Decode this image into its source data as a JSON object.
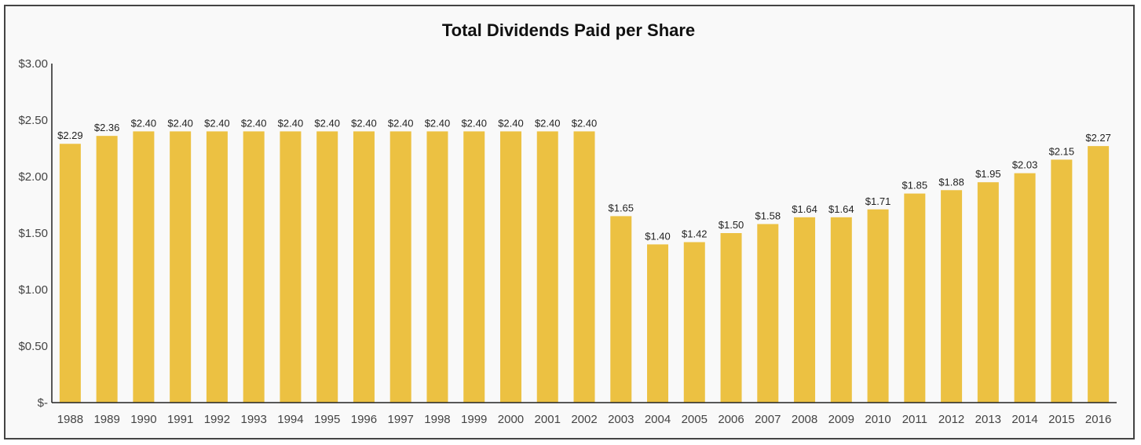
{
  "chart_data": {
    "type": "bar",
    "title": "Total Dividends Paid per Share",
    "xlabel": "",
    "ylabel": "",
    "ylim": [
      0,
      3.0
    ],
    "yticks": [
      "$-",
      "$0.50",
      "$1.00",
      "$1.50",
      "$2.00",
      "$2.50",
      "$3.00"
    ],
    "ytick_values": [
      0,
      0.5,
      1.0,
      1.5,
      2.0,
      2.5,
      3.0
    ],
    "grid": false,
    "bar_color": "#ECC142",
    "categories": [
      "1988",
      "1989",
      "1990",
      "1991",
      "1992",
      "1993",
      "1994",
      "1995",
      "1996",
      "1997",
      "1998",
      "1999",
      "2000",
      "2001",
      "2002",
      "2003",
      "2004",
      "2005",
      "2006",
      "2007",
      "2008",
      "2009",
      "2010",
      "2011",
      "2012",
      "2013",
      "2014",
      "2015",
      "2016"
    ],
    "values": [
      2.29,
      2.36,
      2.4,
      2.4,
      2.4,
      2.4,
      2.4,
      2.4,
      2.4,
      2.4,
      2.4,
      2.4,
      2.4,
      2.4,
      2.4,
      1.65,
      1.4,
      1.42,
      1.5,
      1.58,
      1.64,
      1.64,
      1.71,
      1.85,
      1.88,
      1.95,
      2.03,
      2.15,
      2.27
    ],
    "data_labels": [
      "$2.29",
      "$2.36",
      "$2.40",
      "$2.40",
      "$2.40",
      "$2.40",
      "$2.40",
      "$2.40",
      "$2.40",
      "$2.40",
      "$2.40",
      "$2.40",
      "$2.40",
      "$2.40",
      "$2.40",
      "$1.65",
      "$1.40",
      "$1.42",
      "$1.50",
      "$1.58",
      "$1.64",
      "$1.64",
      "$1.71",
      "$1.85",
      "$1.88",
      "$1.95",
      "$2.03",
      "$2.15",
      "$2.27"
    ]
  }
}
